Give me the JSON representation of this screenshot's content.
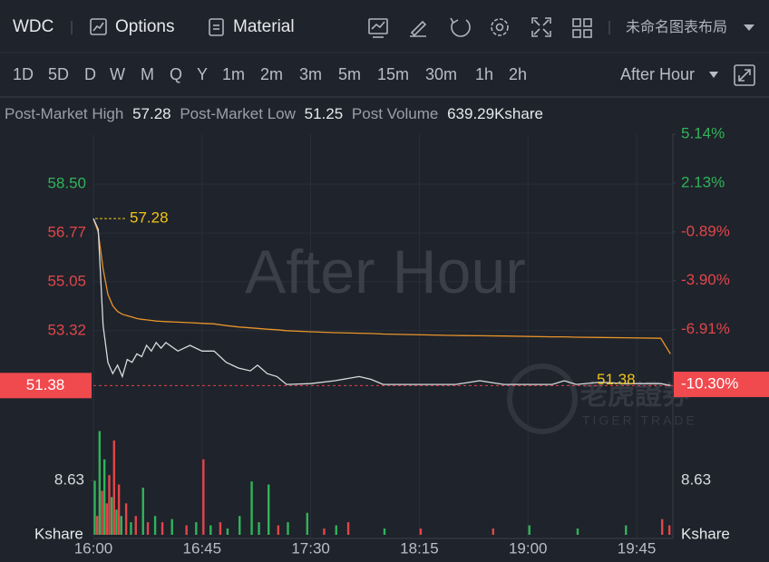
{
  "toolbar": {
    "symbol": "WDC",
    "options": "Options",
    "material": "Material",
    "layout": "未命名图表布局"
  },
  "periods": [
    "1D",
    "5D",
    "D",
    "W",
    "M",
    "Q",
    "Y",
    "1m",
    "2m",
    "3m",
    "5m",
    "15m",
    "30m",
    "1h",
    "2h"
  ],
  "session": "After Hour",
  "stats": [
    {
      "label": "Post-Market High",
      "value": "57.28"
    },
    {
      "label": "Post-Market Low",
      "value": "51.25"
    },
    {
      "label": "Post Volume",
      "value": "639.29Kshare"
    }
  ],
  "chart": {
    "watermark": "After Hour",
    "brand": "老虎證券",
    "brand_en": "TIGER TRADE",
    "xlim": [
      "16:00",
      "20:00"
    ],
    "xticks": [
      "16:00",
      "16:45",
      "17:30",
      "18:15",
      "19:00",
      "19:45"
    ],
    "ylim": [
      50.27,
      60.52
    ],
    "yticks": [
      {
        "value": 58.5,
        "label": "58.50"
      },
      56.77,
      55.05,
      53.32
    ],
    "y2lim": [
      -12.31,
      5.59
    ],
    "y2ticks": [
      {
        "value": 5.14,
        "label": "5.14%"
      },
      {
        "value": 2.13,
        "label": "2.13%"
      },
      {
        "value": -0.89,
        "label": "-0.89%"
      },
      {
        "value": -3.9,
        "label": "-3.90%"
      },
      {
        "value": -6.91,
        "label": "-6.91%"
      }
    ],
    "last_price": 51.38,
    "last_change": {
      "value": -10.3,
      "label": "-10.30%"
    },
    "high": 57.28,
    "x": [
      "16:00",
      "16:02",
      "16:04",
      "16:06",
      "16:08",
      "16:10",
      "16:12",
      "16:14",
      "16:16",
      "16:18",
      "16:20",
      "16:22",
      "16:24",
      "16:26",
      "16:28",
      "16:30",
      "16:35",
      "16:40",
      "16:45",
      "16:50",
      "16:55",
      "17:00",
      "17:05",
      "17:08",
      "17:12",
      "17:16",
      "17:20",
      "17:30",
      "17:40",
      "17:50",
      "17:55",
      "18:00",
      "18:30",
      "18:40",
      "18:50",
      "19:10",
      "19:15",
      "19:20",
      "19:30",
      "19:40",
      "19:55",
      "19:59"
    ],
    "price": {
      "color": "#d8dadd",
      "values": [
        57.28,
        56.9,
        53.5,
        52.2,
        51.8,
        52.1,
        51.7,
        52.3,
        52.2,
        52.5,
        52.4,
        52.8,
        52.6,
        52.9,
        52.7,
        52.9,
        52.6,
        52.8,
        52.6,
        52.6,
        52.2,
        52.0,
        51.9,
        52.1,
        51.8,
        51.7,
        51.42,
        51.45,
        51.55,
        51.7,
        51.6,
        51.42,
        51.42,
        51.55,
        51.42,
        51.42,
        51.55,
        51.42,
        51.5,
        51.45,
        51.45,
        51.38
      ]
    },
    "average": {
      "color": "#e8942a",
      "values": [
        57.28,
        56.8,
        55.5,
        54.6,
        54.2,
        54.0,
        53.9,
        53.85,
        53.8,
        53.75,
        53.72,
        53.7,
        53.68,
        53.66,
        53.65,
        53.64,
        53.62,
        53.6,
        53.58,
        53.56,
        53.5,
        53.45,
        53.42,
        53.4,
        53.37,
        53.35,
        53.32,
        53.28,
        53.25,
        53.23,
        53.22,
        53.2,
        53.15,
        53.14,
        53.13,
        53.1,
        53.1,
        53.09,
        53.08,
        53.07,
        53.05,
        52.5
      ]
    },
    "volume": {
      "ylim": [
        0,
        17.3
      ],
      "ticks": [
        8.63
      ],
      "unit": "Kshare",
      "x": [
        "16:00",
        "16:01",
        "16:02",
        "16:03",
        "16:04",
        "16:05",
        "16:06",
        "16:07",
        "16:08",
        "16:09",
        "16:10",
        "16:11",
        "16:13",
        "16:15",
        "16:17",
        "16:20",
        "16:22",
        "16:25",
        "16:28",
        "16:32",
        "16:38",
        "16:42",
        "16:45",
        "16:48",
        "16:52",
        "16:55",
        "17:00",
        "17:05",
        "17:08",
        "17:12",
        "17:16",
        "17:20",
        "17:28",
        "17:35",
        "17:40",
        "17:45",
        "18:00",
        "18:15",
        "18:45",
        "19:00",
        "19:20",
        "19:40",
        "19:55",
        "19:58"
      ],
      "values": [
        8.6,
        3,
        16.5,
        7,
        12,
        5,
        9.5,
        6,
        15,
        4,
        8,
        3,
        5,
        2,
        3,
        7.5,
        2,
        3,
        2,
        2.5,
        1.5,
        2,
        12,
        1.5,
        2,
        1,
        3,
        8.5,
        2,
        8,
        1.5,
        2,
        3.5,
        1,
        1.5,
        2,
        1,
        1,
        1,
        1.5,
        1,
        1.5,
        2.5,
        1.5
      ],
      "colors": [
        "#2fb45a",
        "#e0464a",
        "#2fb45a",
        "#e0464a",
        "#2fb45a",
        "#e0464a",
        "#e0464a",
        "#2fb45a",
        "#e0464a",
        "#2fb45a",
        "#e0464a",
        "#2fb45a",
        "#e0464a",
        "#2fb45a",
        "#e0464a",
        "#2fb45a",
        "#e0464a",
        "#2fb45a",
        "#e0464a",
        "#2fb45a",
        "#e0464a",
        "#2fb45a",
        "#e0464a",
        "#2fb45a",
        "#e0464a",
        "#2fb45a",
        "#2fb45a",
        "#2fb45a",
        "#2fb45a",
        "#2fb45a",
        "#e0464a",
        "#2fb45a",
        "#2fb45a",
        "#e0464a",
        "#2fb45a",
        "#e0464a",
        "#2fb45a",
        "#e0464a",
        "#e0464a",
        "#2fb45a",
        "#2fb45a",
        "#2fb45a",
        "#e0464a",
        "#e0464a"
      ]
    }
  }
}
